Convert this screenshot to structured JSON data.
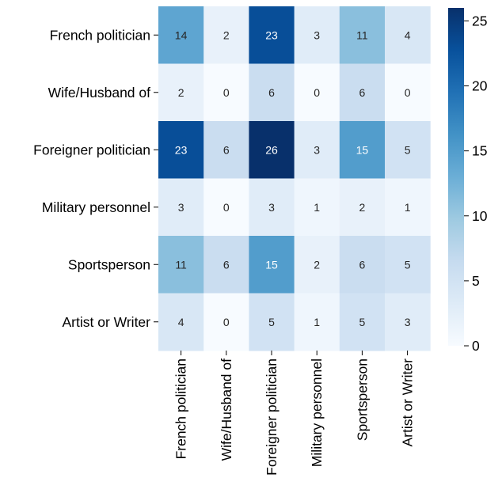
{
  "chart_data": {
    "type": "heatmap",
    "title": "",
    "xlabel": "",
    "ylabel": "",
    "rows": [
      "French politician",
      "Wife/Husband of",
      "Foreigner politician",
      "Military personnel",
      "Sportsperson",
      "Artist or Writer"
    ],
    "columns": [
      "French politician",
      "Wife/Husband of",
      "Foreigner politician",
      "Military personnel",
      "Sportsperson",
      "Artist or Writer"
    ],
    "values": [
      [
        14,
        2,
        23,
        3,
        11,
        4
      ],
      [
        2,
        0,
        6,
        0,
        6,
        0
      ],
      [
        23,
        6,
        26,
        3,
        15,
        5
      ],
      [
        3,
        0,
        3,
        1,
        2,
        1
      ],
      [
        11,
        6,
        15,
        2,
        6,
        5
      ],
      [
        4,
        0,
        5,
        1,
        5,
        3
      ]
    ],
    "colorbar": {
      "colormap": "Blues",
      "range": [
        0,
        26
      ],
      "ticks": [
        0,
        5,
        10,
        15,
        20,
        25
      ],
      "low_color": "#f7fbff",
      "high_color": "#08306b"
    }
  }
}
